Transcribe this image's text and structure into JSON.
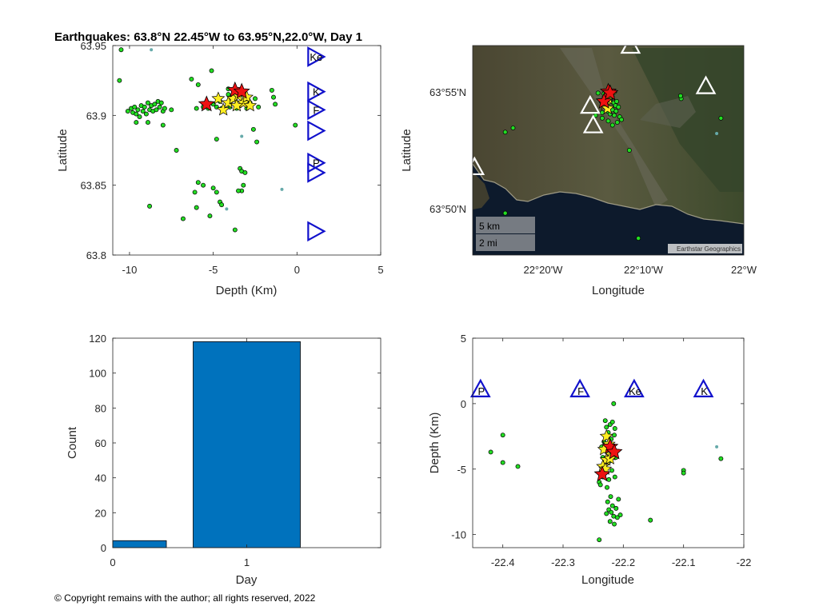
{
  "title": "Earthquakes: 63.8°N 22.45°W to 63.95°N,22.0°W, Day 1",
  "copyright": "© Copyright remains with the author; all rights reserved, 2022",
  "colors": {
    "quake_green": "#22dd22",
    "quake_teal": "#66aaaa",
    "star_yellow": "#ffee22",
    "star_red": "#ee1111",
    "station_blue": "#1111cc",
    "bar_blue": "#0072bd"
  },
  "chart_data": [
    {
      "id": "depth-lat",
      "type": "scatter",
      "xlabel": "Depth (Km)",
      "ylabel": "Latitude",
      "xlim": [
        -11,
        5
      ],
      "ylim": [
        63.8,
        63.95
      ],
      "xticks": [
        -10,
        -5,
        0,
        5
      ],
      "xtick_labels": [
        "-10",
        "-5",
        "0",
        "5"
      ],
      "yticks": [
        63.8,
        63.85,
        63.9,
        63.95
      ],
      "ytick_labels": [
        "63.8",
        "63.85",
        "63.9",
        "63.95"
      ],
      "green_points": [
        [
          -10.5,
          63.947
        ],
        [
          -10.6,
          63.925
        ],
        [
          -10.1,
          63.903
        ],
        [
          -9.9,
          63.905
        ],
        [
          -9.8,
          63.902
        ],
        [
          -9.7,
          63.906
        ],
        [
          -9.6,
          63.901
        ],
        [
          -9.5,
          63.904
        ],
        [
          -9.4,
          63.899
        ],
        [
          -9.3,
          63.907
        ],
        [
          -9.2,
          63.903
        ],
        [
          -9.1,
          63.906
        ],
        [
          -9.0,
          63.901
        ],
        [
          -8.9,
          63.909
        ],
        [
          -8.8,
          63.904
        ],
        [
          -8.7,
          63.907
        ],
        [
          -8.6,
          63.903
        ],
        [
          -8.5,
          63.908
        ],
        [
          -8.4,
          63.904
        ],
        [
          -8.3,
          63.91
        ],
        [
          -8.2,
          63.906
        ],
        [
          -8.1,
          63.909
        ],
        [
          -8.0,
          63.903
        ],
        [
          -7.9,
          63.905
        ],
        [
          -9.6,
          63.895
        ],
        [
          -8.9,
          63.895
        ],
        [
          -8.0,
          63.893
        ],
        [
          -7.5,
          63.904
        ],
        [
          -7.2,
          63.875
        ],
        [
          -6.3,
          63.926
        ],
        [
          -5.9,
          63.922
        ],
        [
          -6.0,
          63.905
        ],
        [
          -5.6,
          63.906
        ],
        [
          -5.3,
          63.905
        ],
        [
          -5.0,
          63.908
        ],
        [
          -4.8,
          63.906
        ],
        [
          -4.6,
          63.91
        ],
        [
          -4.5,
          63.905
        ],
        [
          -4.1,
          63.915
        ],
        [
          -4.0,
          63.906
        ],
        [
          -3.8,
          63.912
        ],
        [
          -3.6,
          63.905
        ],
        [
          -3.4,
          63.907
        ],
        [
          -3.2,
          63.916
        ],
        [
          -3.0,
          63.905
        ],
        [
          -2.8,
          63.909
        ],
        [
          -2.5,
          63.912
        ],
        [
          -2.3,
          63.906
        ],
        [
          -5.1,
          63.932
        ],
        [
          -4.1,
          63.919
        ],
        [
          -1.5,
          63.918
        ],
        [
          -1.4,
          63.913
        ],
        [
          -1.3,
          63.908
        ],
        [
          -2.6,
          63.89
        ],
        [
          -4.8,
          63.883
        ],
        [
          -2.4,
          63.881
        ],
        [
          -0.1,
          63.893
        ],
        [
          -3.4,
          63.862
        ],
        [
          -3.3,
          63.86
        ],
        [
          -3.1,
          63.859
        ],
        [
          -5.9,
          63.852
        ],
        [
          -5.6,
          63.85
        ],
        [
          -5.0,
          63.848
        ],
        [
          -3.2,
          63.85
        ],
        [
          -3.3,
          63.846
        ],
        [
          -3.5,
          63.846
        ],
        [
          -6.1,
          63.845
        ],
        [
          -4.8,
          63.845
        ],
        [
          -4.6,
          63.838
        ],
        [
          -4.5,
          63.836
        ],
        [
          -6.0,
          63.834
        ],
        [
          -8.8,
          63.835
        ],
        [
          -6.8,
          63.826
        ],
        [
          -5.2,
          63.828
        ],
        [
          -3.7,
          63.818
        ]
      ],
      "teal_points": [
        [
          -8.7,
          63.947
        ],
        [
          -3.3,
          63.885
        ],
        [
          -0.9,
          63.847
        ],
        [
          -4.2,
          63.833
        ]
      ],
      "yellow_stars": [
        [
          -4.4,
          63.904
        ],
        [
          -4.1,
          63.909
        ],
        [
          -3.8,
          63.912
        ],
        [
          -3.5,
          63.914
        ],
        [
          -3.2,
          63.909
        ],
        [
          -3.0,
          63.913
        ],
        [
          -2.8,
          63.907
        ],
        [
          -4.7,
          63.912
        ],
        [
          -3.6,
          63.907
        ],
        [
          -3.3,
          63.917
        ]
      ],
      "red_stars": [
        [
          -5.4,
          63.908
        ],
        [
          -3.7,
          63.918
        ],
        [
          -3.3,
          63.917
        ]
      ],
      "stations": [
        {
          "label": "Ke",
          "x": 1.1,
          "y": 63.942
        },
        {
          "label": "K",
          "x": 1.1,
          "y": 63.917
        },
        {
          "label": "F",
          "x": 1.1,
          "y": 63.904
        },
        {
          "label": "",
          "x": 1.1,
          "y": 63.889
        },
        {
          "label": "P",
          "x": 1.1,
          "y": 63.866
        },
        {
          "label": "",
          "x": 1.1,
          "y": 63.859
        },
        {
          "label": "",
          "x": 1.1,
          "y": 63.817
        }
      ]
    },
    {
      "id": "map",
      "type": "scatter",
      "xlabel": "Longitude",
      "ylabel": "Latitude",
      "xlim": [
        -22.45,
        -22.0
      ],
      "ylim": [
        63.8,
        63.95
      ],
      "xticks": [
        -22.3333,
        -22.1667,
        -22.0
      ],
      "xtick_labels": [
        "22°20'W",
        "22°10'W",
        "22°W"
      ],
      "yticks": [
        63.8333,
        63.9167
      ],
      "ytick_labels": [
        "63°50'N",
        "63°55'N"
      ],
      "scalebar_km": "5 km",
      "scalebar_mi": "2 mi",
      "attribution": "Earthstar Geographics",
      "green_points": [
        [
          -22.232,
          63.9155
        ],
        [
          -22.228,
          63.912
        ],
        [
          -22.225,
          63.914
        ],
        [
          -22.222,
          63.911
        ],
        [
          -22.219,
          63.913
        ],
        [
          -22.216,
          63.909
        ],
        [
          -22.213,
          63.907
        ],
        [
          -22.211,
          63.91
        ],
        [
          -22.208,
          63.906
        ],
        [
          -22.229,
          63.906
        ],
        [
          -22.226,
          63.903
        ],
        [
          -22.222,
          63.901
        ],
        [
          -22.218,
          63.904
        ],
        [
          -22.215,
          63.9
        ],
        [
          -22.212,
          63.903
        ],
        [
          -22.235,
          63.902
        ],
        [
          -22.206,
          63.899
        ],
        [
          -22.203,
          63.897
        ],
        [
          -22.21,
          63.895
        ],
        [
          -22.235,
          63.898
        ],
        [
          -22.242,
          63.916
        ],
        [
          -22.225,
          63.896
        ],
        [
          -22.218,
          63.893
        ],
        [
          -22.104,
          63.912
        ],
        [
          -22.105,
          63.914
        ],
        [
          -22.038,
          63.898
        ],
        [
          -22.383,
          63.891
        ],
        [
          -22.396,
          63.888
        ],
        [
          -22.19,
          63.875
        ],
        [
          -22.396,
          63.83
        ],
        [
          -22.175,
          63.812
        ],
        [
          -22.246,
          63.9
        ]
      ],
      "teal_points": [
        [
          -22.045,
          63.887
        ]
      ],
      "yellow_stars": [
        [
          -22.23,
          63.908
        ],
        [
          -22.225,
          63.912
        ],
        [
          -22.221,
          63.915
        ],
        [
          -22.226,
          63.905
        ]
      ],
      "red_stars": [
        [
          -22.225,
          63.917
        ],
        [
          -22.232,
          63.91
        ],
        [
          -22.222,
          63.916
        ]
      ],
      "stations": [
        {
          "label": "",
          "x": -22.188,
          "y": 63.95
        },
        {
          "label": "",
          "x": -22.255,
          "y": 63.907
        },
        {
          "label": "",
          "x": -22.25,
          "y": 63.893
        },
        {
          "label": "",
          "x": -22.063,
          "y": 63.921
        },
        {
          "label": "",
          "x": -22.447,
          "y": 63.863
        }
      ]
    },
    {
      "id": "day-count",
      "type": "bar",
      "xlabel": "Day",
      "ylabel": "Count",
      "xlim": [
        0,
        2
      ],
      "ylim": [
        0,
        120
      ],
      "xticks": [
        0,
        1
      ],
      "xtick_labels": [
        "0",
        "1"
      ],
      "yticks": [
        0,
        20,
        40,
        60,
        80,
        100,
        120
      ],
      "ytick_labels": [
        "0",
        "20",
        "40",
        "60",
        "80",
        "100",
        "120"
      ],
      "bars": [
        {
          "x_start": 0,
          "x_end": 0.4,
          "value": 4
        },
        {
          "x_start": 0.6,
          "x_end": 1.4,
          "value": 118
        }
      ]
    },
    {
      "id": "lon-depth",
      "type": "scatter",
      "xlabel": "Longitude",
      "ylabel": "Depth (Km)",
      "xlim": [
        -22.45,
        -22.0
      ],
      "ylim": [
        -11,
        5
      ],
      "xticks": [
        -22.4,
        -22.3,
        -22.2,
        -22.1,
        -22.0
      ],
      "xtick_labels": [
        "-22.4",
        "-22.3",
        "-22.2",
        "-22.1",
        "-22"
      ],
      "yticks": [
        -10,
        -5,
        0,
        5
      ],
      "ytick_labels": [
        "-10",
        "-5",
        "0",
        "5"
      ],
      "green_points": [
        [
          -22.42,
          -3.7
        ],
        [
          -22.4,
          -2.4
        ],
        [
          -22.4,
          -4.5
        ],
        [
          -22.375,
          -4.8
        ],
        [
          -22.24,
          -10.4
        ],
        [
          -22.216,
          0.0
        ],
        [
          -22.23,
          -1.3
        ],
        [
          -22.228,
          -1.8
        ],
        [
          -22.225,
          -2.2
        ],
        [
          -22.222,
          -1.6
        ],
        [
          -22.218,
          -1.4
        ],
        [
          -22.215,
          -2.4
        ],
        [
          -22.232,
          -2.9
        ],
        [
          -22.22,
          -2.7
        ],
        [
          -22.214,
          -1.9
        ],
        [
          -22.236,
          -3.3
        ],
        [
          -22.229,
          -3.6
        ],
        [
          -22.217,
          -3.5
        ],
        [
          -22.234,
          -4.1
        ],
        [
          -22.223,
          -4.4
        ],
        [
          -22.212,
          -4.1
        ],
        [
          -22.231,
          -4.9
        ],
        [
          -22.219,
          -5.1
        ],
        [
          -22.234,
          -5.6
        ],
        [
          -22.24,
          -6.0
        ],
        [
          -22.224,
          -5.8
        ],
        [
          -22.214,
          -5.6
        ],
        [
          -22.227,
          -6.4
        ],
        [
          -22.238,
          -6.2
        ],
        [
          -22.221,
          -7.1
        ],
        [
          -22.226,
          -7.5
        ],
        [
          -22.218,
          -7.8
        ],
        [
          -22.224,
          -8.1
        ],
        [
          -22.212,
          -8.0
        ],
        [
          -22.22,
          -8.3
        ],
        [
          -22.216,
          -8.6
        ],
        [
          -22.228,
          -8.4
        ],
        [
          -22.21,
          -8.7
        ],
        [
          -22.222,
          -9.0
        ],
        [
          -22.215,
          -9.2
        ],
        [
          -22.208,
          -7.3
        ],
        [
          -22.205,
          -8.5
        ],
        [
          -22.155,
          -8.9
        ],
        [
          -22.1,
          -5.1
        ],
        [
          -22.1,
          -5.3
        ],
        [
          -22.038,
          -4.2
        ]
      ],
      "teal_points": [
        [
          -22.045,
          -3.3
        ]
      ],
      "yellow_stars": [
        [
          -22.228,
          -2.5
        ],
        [
          -22.224,
          -3.1
        ],
        [
          -22.232,
          -3.5
        ],
        [
          -22.22,
          -3.9
        ],
        [
          -22.228,
          -4.3
        ],
        [
          -22.234,
          -4.8
        ],
        [
          -22.222,
          -4.2
        ],
        [
          -22.23,
          -5.0
        ]
      ],
      "red_stars": [
        [
          -22.222,
          -3.3
        ],
        [
          -22.215,
          -3.7
        ],
        [
          -22.235,
          -5.4
        ]
      ],
      "stations": [
        {
          "label": "P",
          "x": -22.437,
          "y": 1.1
        },
        {
          "label": "F",
          "x": -22.272,
          "y": 1.1
        },
        {
          "label": "Ke",
          "x": -22.182,
          "y": 1.1
        },
        {
          "label": "K",
          "x": -22.067,
          "y": 1.1
        }
      ]
    }
  ]
}
